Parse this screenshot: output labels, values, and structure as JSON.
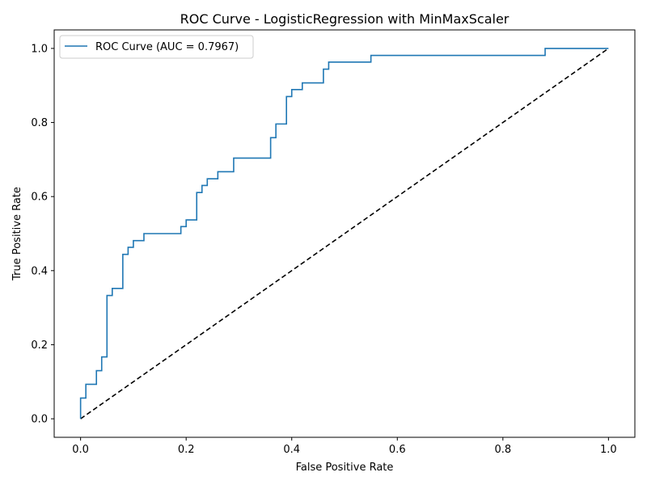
{
  "chart_data": {
    "type": "line",
    "title": "ROC Curve - LogisticRegression with MinMaxScaler",
    "xlabel": "False Positive Rate",
    "ylabel": "True Positive Rate",
    "xlim": [
      -0.05,
      1.05
    ],
    "ylim": [
      -0.05,
      1.05
    ],
    "xticks": [
      0.0,
      0.2,
      0.4,
      0.6,
      0.8,
      1.0
    ],
    "yticks": [
      0.0,
      0.2,
      0.4,
      0.6,
      0.8,
      1.0
    ],
    "xtick_labels": [
      "0.0",
      "0.2",
      "0.4",
      "0.6",
      "0.8",
      "1.0"
    ],
    "ytick_labels": [
      "0.0",
      "0.2",
      "0.4",
      "0.6",
      "0.8",
      "1.0"
    ],
    "grid": false,
    "legend_position": "top-left",
    "series": [
      {
        "name": "ROC Curve (AUC = 0.7967)",
        "color": "#1f77b4",
        "style": "solid",
        "x": [
          0.0,
          0.0,
          0.01,
          0.01,
          0.03,
          0.03,
          0.04,
          0.04,
          0.05,
          0.05,
          0.06,
          0.06,
          0.08,
          0.08,
          0.09,
          0.09,
          0.1,
          0.1,
          0.12,
          0.12,
          0.19,
          0.19,
          0.2,
          0.2,
          0.22,
          0.22,
          0.23,
          0.23,
          0.24,
          0.24,
          0.26,
          0.26,
          0.29,
          0.29,
          0.36,
          0.36,
          0.37,
          0.37,
          0.39,
          0.39,
          0.4,
          0.4,
          0.42,
          0.42,
          0.46,
          0.46,
          0.47,
          0.47,
          0.55,
          0.55,
          0.88,
          0.88,
          1.0
        ],
        "y": [
          0.0,
          0.056,
          0.056,
          0.093,
          0.093,
          0.13,
          0.13,
          0.167,
          0.167,
          0.333,
          0.333,
          0.352,
          0.352,
          0.444,
          0.444,
          0.463,
          0.463,
          0.481,
          0.481,
          0.5,
          0.5,
          0.519,
          0.519,
          0.537,
          0.537,
          0.611,
          0.611,
          0.63,
          0.63,
          0.648,
          0.648,
          0.667,
          0.667,
          0.704,
          0.704,
          0.759,
          0.759,
          0.796,
          0.796,
          0.87,
          0.87,
          0.889,
          0.889,
          0.907,
          0.907,
          0.944,
          0.944,
          0.963,
          0.963,
          0.981,
          0.981,
          1.0,
          1.0
        ]
      },
      {
        "color": "#000000",
        "style": "dashed",
        "x": [
          0.0,
          1.0
        ],
        "y": [
          0.0,
          1.0
        ]
      }
    ]
  }
}
